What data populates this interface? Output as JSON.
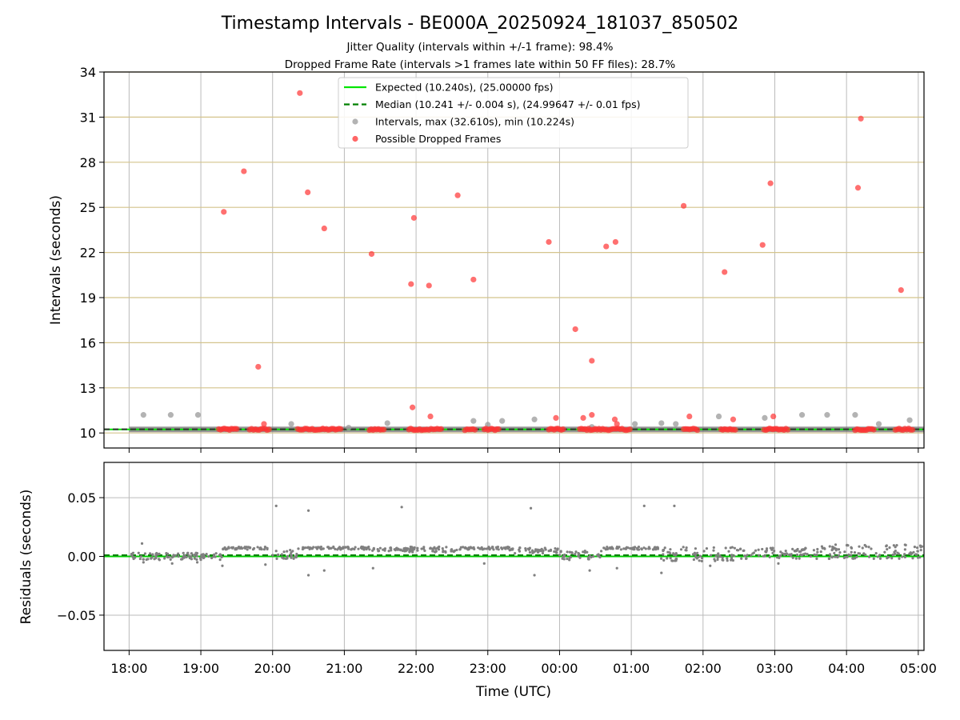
{
  "figure": {
    "title": "Timestamp Intervals - BE000A_20250924_181037_850502",
    "subtitle_1": "Jitter Quality (intervals within +/-1 frame): 98.4%",
    "subtitle_2": "Dropped Frame Rate (intervals >1 frames late within 50 FF files): 28.7%"
  },
  "chart_data": [
    {
      "type": "scatter",
      "panel": "intervals",
      "ylabel": "Intervals (seconds)",
      "xlabel": "",
      "x_unit": "hours since 18:00 UTC (values > 6 are after midnight)",
      "xlim": [
        -0.35,
        11.08
      ],
      "ylim": [
        9.0,
        34.0
      ],
      "x_ticks": [
        0,
        1,
        2,
        3,
        4,
        5,
        6,
        7,
        8,
        9,
        10,
        11
      ],
      "x_tick_labels": [
        "18:00",
        "19:00",
        "20:00",
        "21:00",
        "22:00",
        "23:00",
        "00:00",
        "01:00",
        "02:00",
        "03:00",
        "04:00",
        "05:00"
      ],
      "y_ticks": [
        10,
        13,
        16,
        19,
        22,
        25,
        28,
        31,
        34
      ],
      "y_tick_labels": [
        "10",
        "13",
        "16",
        "19",
        "22",
        "25",
        "28",
        "31",
        "34"
      ],
      "grid": true,
      "grid_color_y": "#d4c48c",
      "grid_color_x": "#bbbbbb",
      "legend_position": "upper-center",
      "expected_interval": 10.24,
      "median_interval": 10.241,
      "legend": [
        {
          "label": "Expected (10.240s), (25.00000 fps)",
          "kind": "line-solid",
          "color": "#00e600"
        },
        {
          "label": "Median (10.241 +/- 0.004 s), (24.99647 +/- 0.01 fps)",
          "kind": "line-dashed",
          "color": "#008000"
        },
        {
          "label": "Intervals, max (32.610s), min (10.224s)",
          "kind": "marker",
          "color": "#999999"
        },
        {
          "label": "Possible Dropped Frames",
          "kind": "marker",
          "color": "#ff3333"
        }
      ],
      "series": [
        {
          "name": "Intervals, max (32.610s), min (10.224s)",
          "color": "#999999",
          "baseline_runs": [
            [
              0.0,
              11.08
            ]
          ],
          "points": [
            [
              0.2,
              11.2
            ],
            [
              0.58,
              11.2
            ],
            [
              0.96,
              11.2
            ],
            [
              2.26,
              10.6
            ],
            [
              3.06,
              10.35
            ],
            [
              3.6,
              10.65
            ],
            [
              4.8,
              10.8
            ],
            [
              5.0,
              10.55
            ],
            [
              5.2,
              10.8
            ],
            [
              5.65,
              10.9
            ],
            [
              6.45,
              10.4
            ],
            [
              7.05,
              10.6
            ],
            [
              7.42,
              10.65
            ],
            [
              7.62,
              10.6
            ],
            [
              8.22,
              11.1
            ],
            [
              8.86,
              11.0
            ],
            [
              9.38,
              11.2
            ],
            [
              9.73,
              11.2
            ],
            [
              10.12,
              11.2
            ],
            [
              10.45,
              10.6
            ],
            [
              10.88,
              10.85
            ]
          ]
        },
        {
          "name": "Possible Dropped Frames",
          "color": "#ff3333",
          "points": [
            [
              1.32,
              24.7
            ],
            [
              1.6,
              27.4
            ],
            [
              1.8,
              14.4
            ],
            [
              1.88,
              10.6
            ],
            [
              2.38,
              32.6
            ],
            [
              2.49,
              26.0
            ],
            [
              2.72,
              23.6
            ],
            [
              3.38,
              21.9
            ],
            [
              3.93,
              19.9
            ],
            [
              3.95,
              11.7
            ],
            [
              3.97,
              24.3
            ],
            [
              4.18,
              19.8
            ],
            [
              4.2,
              11.1
            ],
            [
              4.58,
              25.8
            ],
            [
              4.8,
              20.2
            ],
            [
              5.85,
              22.7
            ],
            [
              5.95,
              11.0
            ],
            [
              6.22,
              16.9
            ],
            [
              6.33,
              11.0
            ],
            [
              6.45,
              14.8
            ],
            [
              6.45,
              11.2
            ],
            [
              6.65,
              22.4
            ],
            [
              6.78,
              22.7
            ],
            [
              6.77,
              10.9
            ],
            [
              6.8,
              10.6
            ],
            [
              7.73,
              25.1
            ],
            [
              7.81,
              11.1
            ],
            [
              8.3,
              20.7
            ],
            [
              8.42,
              10.9
            ],
            [
              8.83,
              22.5
            ],
            [
              8.94,
              26.6
            ],
            [
              8.98,
              11.1
            ],
            [
              10.16,
              26.3
            ],
            [
              10.2,
              30.9
            ],
            [
              10.76,
              19.5
            ]
          ],
          "clusters": [
            [
              1.25,
              1.5
            ],
            [
              1.68,
              1.95
            ],
            [
              2.35,
              2.68
            ],
            [
              2.7,
              2.95
            ],
            [
              3.35,
              3.55
            ],
            [
              3.9,
              4.15
            ],
            [
              4.18,
              4.35
            ],
            [
              4.68,
              4.82
            ],
            [
              4.95,
              5.15
            ],
            [
              5.85,
              6.05
            ],
            [
              6.28,
              6.48
            ],
            [
              6.5,
              6.65
            ],
            [
              6.68,
              6.98
            ],
            [
              7.73,
              7.92
            ],
            [
              8.25,
              8.45
            ],
            [
              8.85,
              9.18
            ],
            [
              10.12,
              10.38
            ],
            [
              10.68,
              10.92
            ]
          ]
        }
      ]
    },
    {
      "type": "scatter",
      "panel": "residuals",
      "ylabel": "Residuals (seconds)",
      "xlabel": "Time (UTC)",
      "xlim": [
        -0.35,
        11.08
      ],
      "ylim": [
        -0.08,
        0.08
      ],
      "y_ticks": [
        -0.05,
        0.0,
        0.05
      ],
      "y_tick_labels": [
        "−0.05",
        "0.00",
        "0.05"
      ],
      "grid": true,
      "expected_residual": 0.0,
      "median_residual": 0.001,
      "series": [
        {
          "name": "Residuals",
          "color": "#808080",
          "bands": [
            {
              "x": [
                0.0,
                1.3
              ],
              "level": 0.0,
              "spread": 0.003
            },
            {
              "x": [
                1.3,
                1.95
              ],
              "level": 0.007,
              "spread": 0.0012
            },
            {
              "x": [
                2.0,
                2.35
              ],
              "level": 0.002,
              "spread": 0.004
            },
            {
              "x": [
                2.35,
                3.35
              ],
              "level": 0.007,
              "spread": 0.0012
            },
            {
              "x": [
                3.35,
                3.9
              ],
              "level": 0.006,
              "spread": 0.0015
            },
            {
              "x": [
                3.9,
                4.6
              ],
              "level": 0.006,
              "spread": 0.0025
            },
            {
              "x": [
                4.6,
                5.3
              ],
              "level": 0.007,
              "spread": 0.0012
            },
            {
              "x": [
                5.3,
                6.0
              ],
              "level": 0.005,
              "spread": 0.0025
            },
            {
              "x": [
                6.0,
                6.6
              ],
              "level": 0.001,
              "spread": 0.004
            },
            {
              "x": [
                6.6,
                7.4
              ],
              "level": 0.007,
              "spread": 0.0012
            },
            {
              "x": [
                7.4,
                8.6
              ],
              "level": 0.002,
              "spread": 0.006
            },
            {
              "x": [
                8.6,
                9.6
              ],
              "level": 0.003,
              "spread": 0.005
            },
            {
              "x": [
                9.6,
                11.08
              ],
              "level": 0.004,
              "spread": 0.006
            }
          ],
          "points": [
            [
              0.18,
              0.011
            ],
            [
              2.05,
              0.043
            ],
            [
              2.5,
              0.039
            ],
            [
              3.8,
              0.042
            ],
            [
              5.6,
              0.041
            ],
            [
              7.18,
              0.043
            ],
            [
              7.6,
              0.043
            ],
            [
              2.5,
              -0.016
            ],
            [
              2.72,
              -0.012
            ],
            [
              1.3,
              -0.008
            ],
            [
              1.9,
              -0.007
            ],
            [
              3.4,
              -0.01
            ],
            [
              5.65,
              -0.016
            ],
            [
              6.42,
              -0.012
            ],
            [
              6.8,
              -0.01
            ],
            [
              7.42,
              -0.014
            ],
            [
              0.2,
              -0.005
            ],
            [
              0.6,
              -0.006
            ],
            [
              0.95,
              -0.005
            ],
            [
              4.95,
              -0.006
            ],
            [
              8.1,
              -0.008
            ],
            [
              9.05,
              -0.006
            ]
          ]
        }
      ]
    }
  ]
}
